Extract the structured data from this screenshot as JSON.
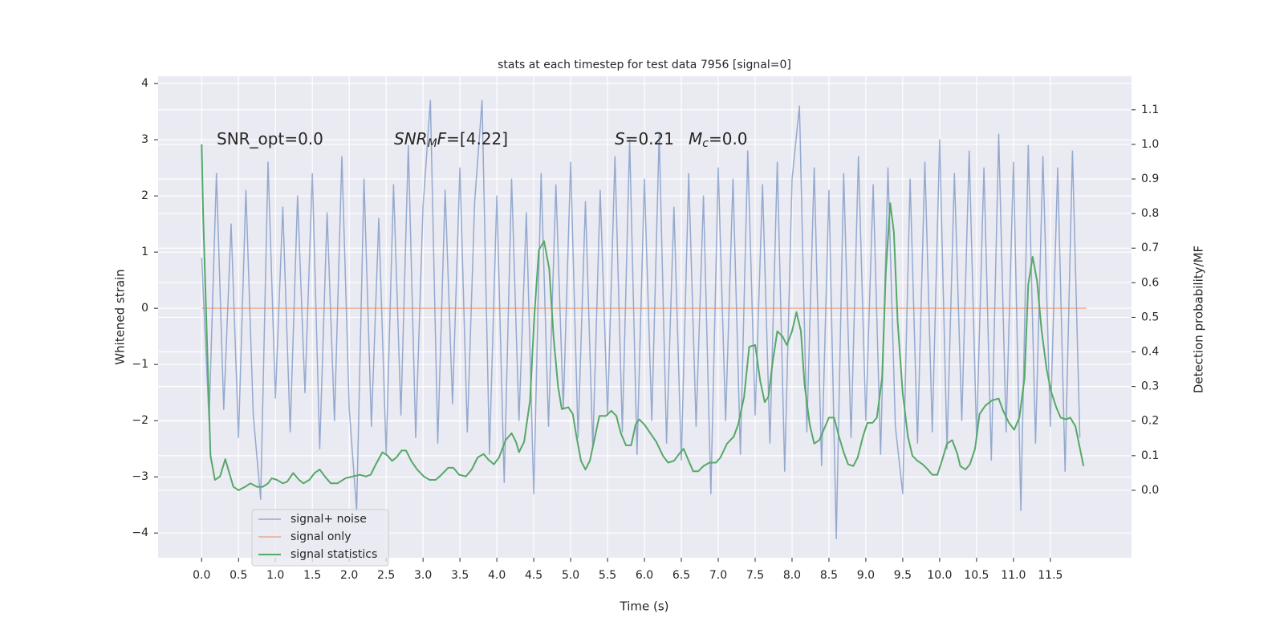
{
  "chart_data": {
    "type": "line",
    "title": "stats at each timestep for test data 7956 [signal=0]",
    "xlabel": "Time (s)",
    "ylabel": "Whitened strain",
    "y2label": "Detection probability/MF",
    "annotations": [
      [
        {
          "text": "SNR_opt=0.0"
        }
      ],
      [
        {
          "text": "SNR",
          "style": "italic"
        },
        {
          "text": "M",
          "style": "italic-sub"
        },
        {
          "text": "F",
          "style": "italic"
        },
        {
          "text": "=[4.22]"
        }
      ],
      [
        {
          "text": "S",
          "style": "italic"
        },
        {
          "text": "=0.21"
        }
      ],
      [
        {
          "text": "M",
          "style": "italic"
        },
        {
          "text": "c",
          "style": "italic-sub"
        },
        {
          "text": "=0.0"
        }
      ]
    ],
    "xlim": [
      -0.59,
      12.6
    ],
    "ylim": [
      -4.44,
      4.13
    ],
    "y2lim": [
      -0.195,
      1.197
    ],
    "xticks": [
      {
        "value": 0,
        "label": "0.0"
      },
      0.5,
      {
        "value": 1,
        "label": "1.0"
      },
      1.5,
      {
        "value": 2,
        "label": "2.0"
      },
      2.5,
      {
        "value": 3,
        "label": "3.0"
      },
      3.5,
      {
        "value": 4,
        "label": "4.0"
      },
      4.5,
      {
        "value": 5,
        "label": "5.0"
      },
      5.5,
      {
        "value": 6,
        "label": "6.0"
      },
      6.5,
      {
        "value": 7,
        "label": "7.0"
      },
      7.5,
      {
        "value": 8,
        "label": "8.0"
      },
      8.5,
      {
        "value": 9,
        "label": "9.0"
      },
      9.5,
      {
        "value": 10,
        "label": "10.0"
      },
      10.5,
      {
        "value": 11,
        "label": "11.0"
      },
      11.5
    ],
    "yticks": [
      {
        "value": -4,
        "label": "−4"
      },
      {
        "value": -3,
        "label": "−3"
      },
      {
        "value": -2,
        "label": "−2"
      },
      {
        "value": -1,
        "label": "−1"
      },
      0,
      1,
      2,
      3,
      4
    ],
    "y2ticks": [
      {
        "value": 0,
        "label": "0.0"
      },
      0.1,
      0.2,
      0.3,
      0.4,
      0.5,
      0.6,
      0.7,
      0.8,
      0.9,
      {
        "value": 1,
        "label": "1.0"
      },
      1.1
    ],
    "grid": true,
    "legend": "lower left",
    "series": [
      {
        "name": "signal+ noise",
        "color": "#4c72b0",
        "x": [
          0.0,
          0.1,
          0.2,
          0.3,
          0.4,
          0.5,
          0.6,
          0.7,
          0.8,
          0.9,
          1.0,
          1.1,
          1.2,
          1.3,
          1.4,
          1.5,
          1.6,
          1.7,
          1.8,
          1.9,
          2.0,
          2.1,
          2.2,
          2.3,
          2.4,
          2.5,
          2.6,
          2.7,
          2.8,
          2.9,
          3.0,
          3.1,
          3.2,
          3.3,
          3.4,
          3.5,
          3.6,
          3.7,
          3.8,
          3.9,
          4.0,
          4.1,
          4.2,
          4.3,
          4.4,
          4.5,
          4.6,
          4.7,
          4.8,
          4.9,
          5.0,
          5.1,
          5.2,
          5.3,
          5.4,
          5.5,
          5.6,
          5.7,
          5.8,
          5.9,
          6.0,
          6.1,
          6.2,
          6.3,
          6.4,
          6.5,
          6.6,
          6.7,
          6.8,
          6.9,
          7.0,
          7.1,
          7.2,
          7.3,
          7.4,
          7.5,
          7.6,
          7.7,
          7.8,
          7.9,
          8.0,
          8.1,
          8.2,
          8.3,
          8.4,
          8.5,
          8.6,
          8.7,
          8.8,
          8.9,
          9.0,
          9.1,
          9.2,
          9.3,
          9.4,
          9.5,
          9.6,
          9.7,
          9.8,
          9.9,
          10.0,
          10.1,
          10.2,
          10.3,
          10.4,
          10.5,
          10.6,
          10.7,
          10.8,
          10.9,
          11.0,
          11.1,
          11.2,
          11.3,
          11.4,
          11.5,
          11.6,
          11.7,
          11.8,
          11.9
        ],
        "values": [
          0.9,
          -2.0,
          2.4,
          -1.8,
          1.5,
          -2.3,
          2.1,
          -1.9,
          -3.4,
          2.6,
          -1.6,
          1.8,
          -2.2,
          2.0,
          -1.5,
          2.4,
          -2.5,
          1.7,
          -2.0,
          2.7,
          -1.8,
          -3.6,
          2.3,
          -2.1,
          1.6,
          -2.6,
          2.2,
          -1.9,
          2.9,
          -2.3,
          1.8,
          3.7,
          -2.4,
          2.1,
          -1.7,
          2.5,
          -2.2,
          1.9,
          3.7,
          -2.6,
          2.0,
          -3.1,
          2.3,
          -2.0,
          1.7,
          -3.3,
          2.4,
          -2.1,
          2.2,
          -1.8,
          2.6,
          -2.3,
          1.9,
          -2.5,
          2.1,
          -1.9,
          2.7,
          -2.2,
          3.0,
          -2.6,
          2.3,
          -2.0,
          3.1,
          -2.4,
          1.8,
          -2.7,
          2.4,
          -2.1,
          2.0,
          -3.3,
          2.5,
          -2.0,
          2.3,
          -2.6,
          2.8,
          -1.9,
          2.2,
          -2.4,
          2.6,
          -2.9,
          2.3,
          3.6,
          -2.2,
          2.5,
          -2.8,
          2.1,
          -4.1,
          2.4,
          -2.3,
          2.7,
          -2.0,
          2.2,
          -2.6,
          2.5,
          -2.1,
          -3.3,
          2.3,
          -2.4,
          2.6,
          -2.2,
          3.0,
          -2.5,
          2.4,
          -2.0,
          2.8,
          -2.3,
          2.5,
          -2.7,
          3.1,
          -2.2,
          2.6,
          -3.6,
          2.9,
          -2.4,
          2.7,
          -2.1,
          2.5,
          -2.9,
          2.8,
          -2.3
        ]
      },
      {
        "name": "signal only",
        "color": "#dd8452",
        "x": [
          0.0,
          11.99
        ],
        "values": [
          0,
          0
        ]
      },
      {
        "name": "signal statistics",
        "color": "#55a868",
        "axis": "y2",
        "x": [
          0,
          0.02,
          0.12,
          0.18,
          0.25,
          0.32,
          0.43,
          0.5,
          0.59,
          0.66,
          0.75,
          0.83,
          0.9,
          0.95,
          1.02,
          1.1,
          1.16,
          1.24,
          1.32,
          1.38,
          1.46,
          1.53,
          1.6,
          1.67,
          1.75,
          1.84,
          1.95,
          2.05,
          2.14,
          2.23,
          2.29,
          2.36,
          2.45,
          2.52,
          2.58,
          2.64,
          2.71,
          2.77,
          2.84,
          2.92,
          3.01,
          3.09,
          3.17,
          3.25,
          3.34,
          3.41,
          3.49,
          3.58,
          3.66,
          3.74,
          3.82,
          3.88,
          3.96,
          4.03,
          4.12,
          4.2,
          4.26,
          4.3,
          4.37,
          4.45,
          4.51,
          4.57,
          4.64,
          4.71,
          4.77,
          4.83,
          4.88,
          4.97,
          5.03,
          5.08,
          5.14,
          5.2,
          5.26,
          5.33,
          5.39,
          5.48,
          5.55,
          5.62,
          5.68,
          5.75,
          5.82,
          5.88,
          5.93,
          6.0,
          6.08,
          6.16,
          6.25,
          6.32,
          6.4,
          6.47,
          6.53,
          6.6,
          6.66,
          6.73,
          6.8,
          6.88,
          6.97,
          7.03,
          7.12,
          7.21,
          7.27,
          7.35,
          7.42,
          7.5,
          7.57,
          7.63,
          7.68,
          7.74,
          7.8,
          7.87,
          7.93,
          8.0,
          8.06,
          8.12,
          8.17,
          8.24,
          8.3,
          8.37,
          8.43,
          8.5,
          8.57,
          8.63,
          8.7,
          8.76,
          8.83,
          8.89,
          8.96,
          9.02,
          9.09,
          9.15,
          9.22,
          9.27,
          9.33,
          9.38,
          9.43,
          9.5,
          9.57,
          9.63,
          9.7,
          9.77,
          9.84,
          9.9,
          9.97,
          10.03,
          10.1,
          10.17,
          10.24,
          10.28,
          10.35,
          10.41,
          10.48,
          10.54,
          10.62,
          10.71,
          10.8,
          10.86,
          10.94,
          11.01,
          11.08,
          11.15,
          11.2,
          11.26,
          11.32,
          11.38,
          11.45,
          11.51,
          11.58,
          11.64,
          11.71,
          11.77,
          11.84,
          11.95
        ],
        "values": [
          1.0,
          0.8,
          0.1,
          0.03,
          0.04,
          0.09,
          0.01,
          0.0,
          0.01,
          0.02,
          0.01,
          0.01,
          0.02,
          0.035,
          0.03,
          0.02,
          0.025,
          0.05,
          0.03,
          0.02,
          0.03,
          0.05,
          0.06,
          0.04,
          0.02,
          0.02,
          0.035,
          0.04,
          0.045,
          0.04,
          0.045,
          0.075,
          0.11,
          0.1,
          0.085,
          0.095,
          0.115,
          0.115,
          0.085,
          0.06,
          0.04,
          0.03,
          0.03,
          0.045,
          0.065,
          0.065,
          0.045,
          0.04,
          0.06,
          0.095,
          0.105,
          0.09,
          0.075,
          0.095,
          0.145,
          0.165,
          0.14,
          0.11,
          0.14,
          0.26,
          0.51,
          0.695,
          0.72,
          0.64,
          0.44,
          0.3,
          0.235,
          0.24,
          0.22,
          0.155,
          0.085,
          0.06,
          0.085,
          0.155,
          0.215,
          0.215,
          0.23,
          0.215,
          0.165,
          0.13,
          0.13,
          0.19,
          0.205,
          0.19,
          0.165,
          0.14,
          0.1,
          0.08,
          0.085,
          0.105,
          0.12,
          0.085,
          0.055,
          0.055,
          0.07,
          0.08,
          0.08,
          0.095,
          0.135,
          0.155,
          0.19,
          0.27,
          0.415,
          0.42,
          0.315,
          0.255,
          0.27,
          0.375,
          0.46,
          0.445,
          0.42,
          0.46,
          0.515,
          0.46,
          0.305,
          0.19,
          0.135,
          0.145,
          0.175,
          0.21,
          0.21,
          0.16,
          0.11,
          0.075,
          0.07,
          0.095,
          0.155,
          0.195,
          0.195,
          0.21,
          0.325,
          0.63,
          0.83,
          0.745,
          0.49,
          0.28,
          0.155,
          0.1,
          0.085,
          0.075,
          0.06,
          0.045,
          0.045,
          0.085,
          0.135,
          0.145,
          0.105,
          0.07,
          0.06,
          0.075,
          0.12,
          0.22,
          0.245,
          0.26,
          0.265,
          0.23,
          0.195,
          0.175,
          0.21,
          0.325,
          0.595,
          0.675,
          0.605,
          0.465,
          0.35,
          0.285,
          0.24,
          0.21,
          0.205,
          0.21,
          0.185,
          0.07
        ]
      }
    ]
  }
}
